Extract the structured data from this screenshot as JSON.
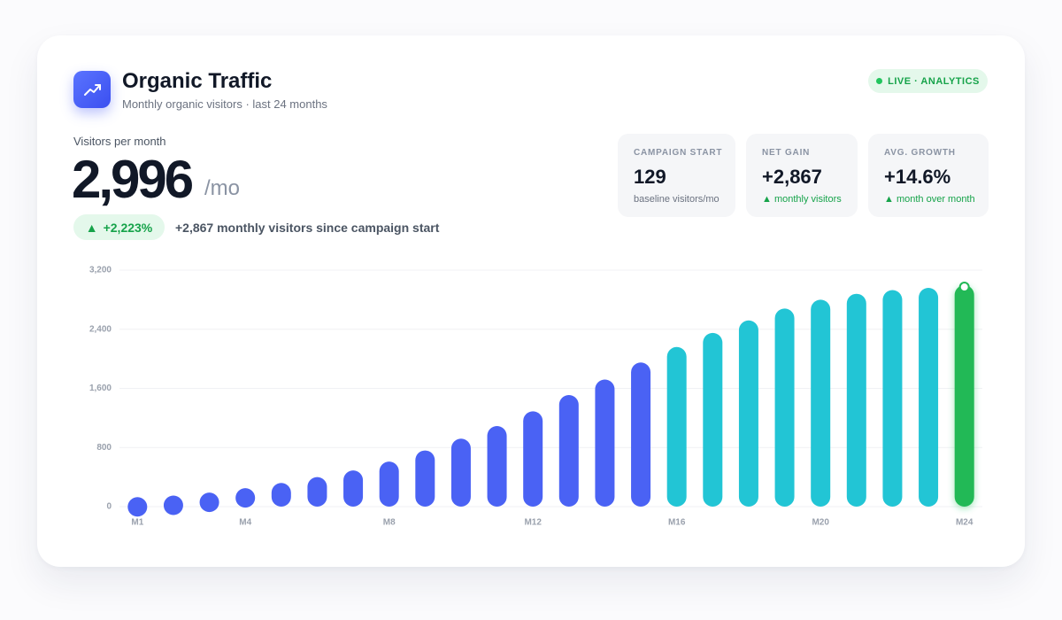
{
  "header": {
    "title": "Organic Traffic",
    "subtitle": "Monthly organic visitors · last 24 months",
    "badge": "LIVE · ANALYTICS"
  },
  "kpi": {
    "label": "Visitors per month",
    "value": "2,996",
    "unit": "/mo",
    "change": "+2,223%",
    "note": "+2,867 monthly visitors since campaign start"
  },
  "stats": [
    {
      "label": "CAMPAIGN START",
      "value": "129",
      "note": "baseline visitors/mo"
    },
    {
      "label": "NET GAIN",
      "value": "+2,867",
      "note": "monthly visitors"
    },
    {
      "label": "AVG. GROWTH",
      "value": "+14.6%",
      "note": "month over month"
    }
  ],
  "chart_data": {
    "type": "bar",
    "categories": [
      "M1",
      null,
      null,
      "M4",
      null,
      null,
      null,
      "M8",
      null,
      null,
      null,
      "M12",
      null,
      null,
      null,
      "M16",
      null,
      null,
      null,
      "M20",
      null,
      null,
      null,
      "M24"
    ],
    "values": [
      129,
      150,
      190,
      250,
      320,
      400,
      490,
      610,
      760,
      920,
      1090,
      1290,
      1510,
      1720,
      1950,
      2160,
      2350,
      2520,
      2680,
      2800,
      2880,
      2930,
      2960,
      2996
    ],
    "colors": [
      "#4a62f4",
      "#4a62f4",
      "#4a62f4",
      "#4a62f4",
      "#4a62f4",
      "#4a62f4",
      "#4a62f4",
      "#4a62f4",
      "#4a62f4",
      "#4a62f4",
      "#4a62f4",
      "#4a62f4",
      "#4a62f4",
      "#4a62f4",
      "#4a62f4",
      "#22c5d5",
      "#22c5d5",
      "#22c5d5",
      "#22c5d5",
      "#22c5d5",
      "#22c5d5",
      "#22c5d5",
      "#22c5d5",
      "#22b956"
    ],
    "ylim": [
      0,
      3200
    ],
    "yticks": [
      0,
      800,
      {
        "value": 1600,
        "label": "1,600"
      },
      {
        "value": 2400,
        "label": "2,400"
      },
      {
        "value": 3200,
        "label": "3,200"
      }
    ],
    "grid": true
  }
}
